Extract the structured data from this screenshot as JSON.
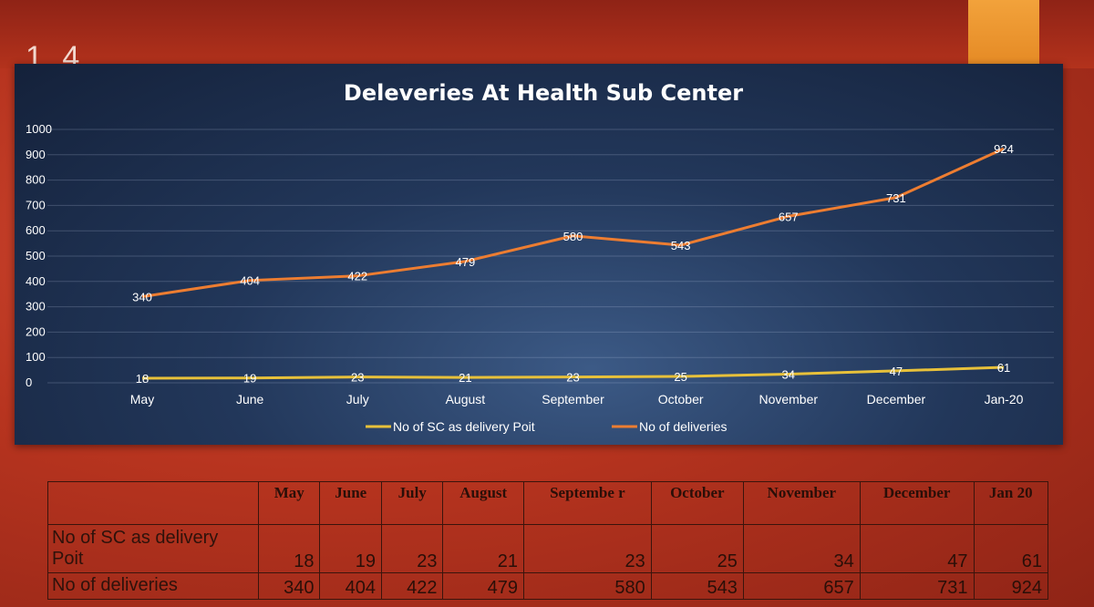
{
  "slide": {
    "number_fragment": "1.4"
  },
  "chart_data": {
    "type": "line",
    "title": "Deleveries At Health Sub Center",
    "categories": [
      "May",
      "June",
      "July",
      "August",
      "September",
      "October",
      "November",
      "December",
      "Jan-20"
    ],
    "series": [
      {
        "name": "No of SC as delivery Poit",
        "values": [
          18,
          19,
          23,
          21,
          23,
          25,
          34,
          47,
          61
        ],
        "color": "#e8c13a"
      },
      {
        "name": "No of deliveries",
        "values": [
          340,
          404,
          422,
          479,
          580,
          543,
          657,
          731,
          924
        ],
        "color": "#ed7d31"
      }
    ],
    "yticks": [
      "0",
      "100",
      "200",
      "300",
      "400",
      "500",
      "600",
      "700",
      "800",
      "900",
      "1000"
    ],
    "ylim": [
      0,
      1000
    ],
    "grid": true,
    "legend": "bottom"
  },
  "table": {
    "columns": [
      "May",
      "June",
      "July",
      "August",
      "Septembe r",
      "October",
      "November",
      "December",
      "Jan 20"
    ],
    "rows": [
      {
        "label": "No of SC as delivery Poit",
        "values": [
          "18",
          "19",
          "23",
          "21",
          "23",
          "25",
          "34",
          "47",
          "61"
        ]
      },
      {
        "label": "No of deliveries",
        "values": [
          "340",
          "404",
          "422",
          "479",
          "580",
          "543",
          "657",
          "731",
          "924"
        ]
      }
    ]
  }
}
